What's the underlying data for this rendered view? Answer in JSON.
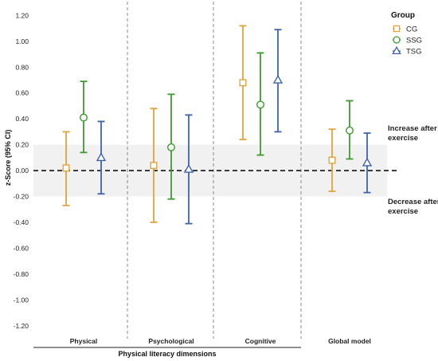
{
  "chart_data": {
    "type": "scatter",
    "ylabel": "z-Score (95% CI)",
    "xlabel": "Physical literacy dimensions",
    "ylim": [
      -1.3,
      1.27
    ],
    "yticks": [
      "1.20",
      "1.00",
      "0.80",
      "0.60",
      "0.40",
      "0.20",
      "0.00",
      "-0.20",
      "-0.40",
      "-0.60",
      "-0.80",
      "-1.00",
      "-1.20"
    ],
    "categories": [
      "Physical",
      "Psychological",
      "Cognitive",
      "Global model"
    ],
    "grid": false,
    "reference_line": 0,
    "shaded_band": [
      -0.2,
      0.2
    ],
    "legend": {
      "title": "Group",
      "position": "top-right"
    },
    "series": [
      {
        "name": "CG",
        "marker": "square",
        "color": "#E3A33A",
        "points": [
          {
            "x": "Physical",
            "y": 0.02,
            "low": -0.27,
            "high": 0.3
          },
          {
            "x": "Psychological",
            "y": 0.04,
            "low": -0.4,
            "high": 0.48
          },
          {
            "x": "Cognitive",
            "y": 0.68,
            "low": 0.24,
            "high": 1.12
          },
          {
            "x": "Global model",
            "y": 0.08,
            "low": -0.16,
            "high": 0.32
          }
        ]
      },
      {
        "name": "SSG",
        "marker": "circle",
        "color": "#3E9A2F",
        "points": [
          {
            "x": "Physical",
            "y": 0.41,
            "low": 0.14,
            "high": 0.69
          },
          {
            "x": "Psychological",
            "y": 0.18,
            "low": -0.22,
            "high": 0.59
          },
          {
            "x": "Cognitive",
            "y": 0.51,
            "low": 0.12,
            "high": 0.91
          },
          {
            "x": "Global model",
            "y": 0.31,
            "low": 0.09,
            "high": 0.54
          }
        ]
      },
      {
        "name": "TSG",
        "marker": "triangle",
        "color": "#3D63B0",
        "points": [
          {
            "x": "Physical",
            "y": 0.1,
            "low": -0.18,
            "high": 0.38
          },
          {
            "x": "Psychological",
            "y": 0.01,
            "low": -0.41,
            "high": 0.43
          },
          {
            "x": "Cognitive",
            "y": 0.7,
            "low": 0.3,
            "high": 1.09
          },
          {
            "x": "Global model",
            "y": 0.06,
            "low": -0.17,
            "high": 0.29
          }
        ]
      }
    ],
    "annotations": {
      "increase": [
        "Increase after",
        "exercise"
      ],
      "decrease": [
        "Decrease after",
        "exercise"
      ]
    }
  }
}
